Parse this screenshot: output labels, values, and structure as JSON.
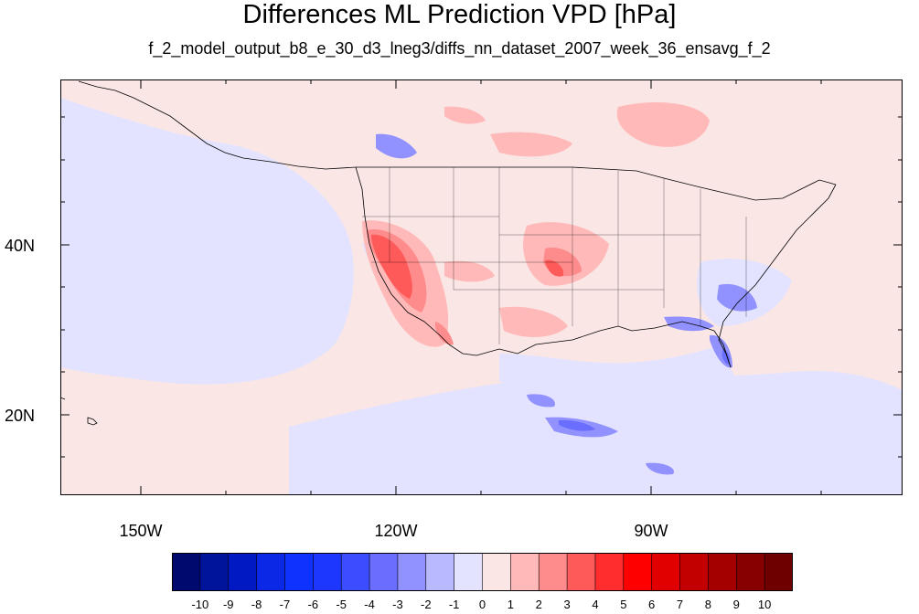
{
  "title": "Differences ML Prediction VPD [hPa]",
  "subtitle": "f_2_model_output_b8_e_30_d3_lneg3/diffs_nn_dataset_2007_week_36_ensavg_f_2",
  "map": {
    "projection": "cylindrical-equidistant",
    "background_color": "#fbe6e6",
    "lat_labels": [
      {
        "text": "40N",
        "value": 40
      },
      {
        "text": "20N",
        "value": 20
      }
    ],
    "lon_labels": [
      {
        "text": "150W",
        "value": -150
      },
      {
        "text": "120W",
        "value": -120
      },
      {
        "text": "90W",
        "value": -90
      }
    ]
  },
  "colorbar": {
    "labels": [
      "-10",
      "-9",
      "-8",
      "-7",
      "-6",
      "-5",
      "-4",
      "-3",
      "-2",
      "-1",
      "0",
      "1",
      "2",
      "3",
      "4",
      "5",
      "6",
      "7",
      "8",
      "9",
      "10"
    ],
    "colors": [
      "#000a6e",
      "#00139b",
      "#0019c3",
      "#0a28e6",
      "#0f32ff",
      "#1e37ff",
      "#3c4cff",
      "#6a6eff",
      "#9191ff",
      "#b9b9ff",
      "#e3e3ff",
      "#fbe6e6",
      "#ffb9b9",
      "#ff8c8c",
      "#ff5a5a",
      "#ff2d2d",
      "#ff0000",
      "#e10000",
      "#c30000",
      "#a50000",
      "#870000",
      "#6e0000"
    ]
  }
}
